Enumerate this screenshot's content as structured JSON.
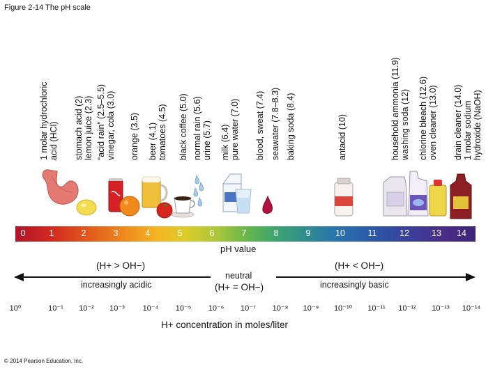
{
  "figure_title": "Figure 2-14 The pH scale",
  "substances": [
    {
      "lines": [
        "1 molar hydrochloric",
        "acid (HCl)"
      ]
    },
    {
      "lines": [
        "stomach acid (2)",
        "lemon juice (2.3)"
      ]
    },
    {
      "lines": [
        "“acid rain” (2.5–5.5)",
        "vinegar, cola (3.0)"
      ]
    },
    {
      "lines": [
        "orange (3.5)"
      ]
    },
    {
      "lines": [
        "beer (4.1)",
        "tomatoes (4.5)"
      ]
    },
    {
      "lines": [
        "black coffee (5.0)"
      ]
    },
    {
      "lines": [
        "normal rain (5.6)",
        "urine (5.7)"
      ]
    },
    {
      "lines": [
        "milk (6.4)",
        "pure water (7.0)"
      ]
    },
    {
      "lines": [
        "blood, sweat (7.4)"
      ]
    },
    {
      "lines": [
        "seawater (7.8–8.3)"
      ]
    },
    {
      "lines": [
        "baking soda (8.4)"
      ]
    },
    {
      "lines": [
        "antacid (10)"
      ]
    },
    {
      "lines": [
        "household ammonia (11.9)",
        "washing soda (12)"
      ]
    },
    {
      "lines": [
        "chlorine bleach (12.6)",
        "oven cleaner (13.0)"
      ]
    },
    {
      "lines": [
        "drain cleaner (14.0)",
        "1 molar sodium",
        "hydroxide (NaOH)"
      ]
    }
  ],
  "ph_scale": {
    "values": [
      "0",
      "1",
      "2",
      "3",
      "4",
      "5",
      "6",
      "7",
      "8",
      "9",
      "10",
      "11",
      "12",
      "13",
      "14"
    ],
    "axis_label": "pH value",
    "gradient_start_color": "#b0142a",
    "gradient_end_color": "#3d2475"
  },
  "acidic_side": {
    "relation": "(H+ > OH−)",
    "label": "increasingly acidic"
  },
  "neutral": {
    "label": "neutral",
    "relation": "(H+ = OH−)"
  },
  "basic_side": {
    "relation": "(H+ < OH−)",
    "label": "increasingly basic"
  },
  "concentration": {
    "values": [
      "10⁰",
      "10⁻¹",
      "10⁻²",
      "10⁻³",
      "10⁻⁴",
      "10⁻⁵",
      "10⁻⁶",
      "10⁻⁷",
      "10⁻⁸",
      "10⁻⁹",
      "10⁻¹⁰",
      "10⁻¹¹",
      "10⁻¹²",
      "10⁻¹³",
      "10⁻¹⁴"
    ],
    "axis_label": "H+ concentration in moles/liter"
  },
  "illustrations": [
    "stomach-icon",
    "lemon-icon",
    "cola-can-icon",
    "orange-icon",
    "beer-mug-icon",
    "tomato-icon",
    "coffee-cup-icon",
    "raindrops-icon",
    "milk-carton-icon",
    "water-glass-icon",
    "blood-drop-icon",
    "antacid-bottle-icon",
    "ammonia-jug-icon",
    "bleach-jug-icon",
    "oven-cleaner-can-icon",
    "drain-cleaner-bottle-icon"
  ],
  "copyright": "© 2014 Pearson Education, Inc."
}
